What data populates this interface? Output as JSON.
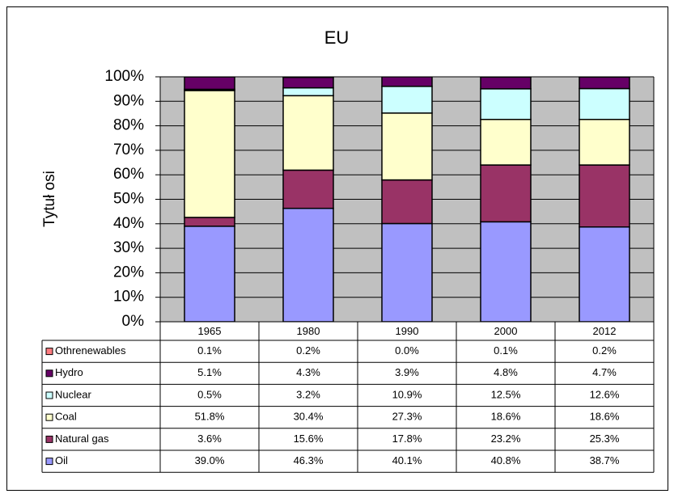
{
  "chart_data": {
    "type": "stacked_bar",
    "title": "EU",
    "y_label": "Tytuł osi",
    "categories": [
      "1965",
      "1980",
      "1990",
      "2000",
      "2012"
    ],
    "series": [
      {
        "name": "Oil",
        "color": "#9999ff",
        "values": [
          39.0,
          46.3,
          40.1,
          40.8,
          38.7
        ],
        "value_labels": [
          "39.0%",
          "46.3%",
          "40.1%",
          "40.8%",
          "38.7%"
        ]
      },
      {
        "name": "Natural gas",
        "color": "#993366",
        "values": [
          3.6,
          15.6,
          17.8,
          23.2,
          25.3
        ],
        "value_labels": [
          "3.6%",
          "15.6%",
          "17.8%",
          "23.2%",
          "25.3%"
        ]
      },
      {
        "name": "Coal",
        "color": "#ffffcc",
        "values": [
          51.8,
          30.4,
          27.3,
          18.6,
          18.6
        ],
        "value_labels": [
          "51.8%",
          "30.4%",
          "27.3%",
          "18.6%",
          "18.6%"
        ]
      },
      {
        "name": "Nuclear",
        "color": "#ccffff",
        "values": [
          0.5,
          3.2,
          10.9,
          12.5,
          12.6
        ],
        "value_labels": [
          "0.5%",
          "3.2%",
          "10.9%",
          "12.5%",
          "12.6%"
        ]
      },
      {
        "name": "Hydro",
        "color": "#660066",
        "values": [
          5.1,
          4.3,
          3.9,
          4.8,
          4.7
        ],
        "value_labels": [
          "5.1%",
          "4.3%",
          "3.9%",
          "4.8%",
          "4.7%"
        ]
      },
      {
        "name": "Othrenewables",
        "color": "#ff7c80",
        "values": [
          0.1,
          0.2,
          0.0,
          0.1,
          0.2
        ],
        "value_labels": [
          "0.1%",
          "0.2%",
          "0.0%",
          "0.1%",
          "0.2%"
        ]
      }
    ],
    "ylim": [
      0,
      100
    ],
    "yticks": [
      {
        "value": 0,
        "label": "0%"
      },
      {
        "value": 10,
        "label": "10%"
      },
      {
        "value": 20,
        "label": "20%"
      },
      {
        "value": 30,
        "label": "30%"
      },
      {
        "value": 40,
        "label": "40%"
      },
      {
        "value": 50,
        "label": "50%"
      },
      {
        "value": 60,
        "label": "60%"
      },
      {
        "value": 70,
        "label": "70%"
      },
      {
        "value": 80,
        "label": "80%"
      },
      {
        "value": 90,
        "label": "90%"
      },
      {
        "value": 100,
        "label": "100%"
      }
    ],
    "grid": true,
    "plot_background": "#c0c0c0",
    "data_table": true
  }
}
